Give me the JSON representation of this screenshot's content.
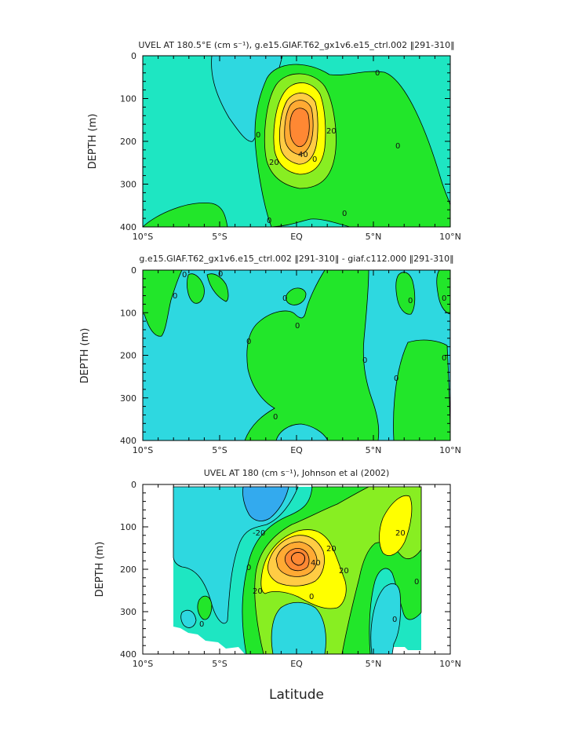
{
  "xlabel": "Latitude",
  "colors": {
    "neg": "#2ed8e0",
    "neg_deep": "#33aaee",
    "zero": "#1ee6c2",
    "pos10": "#22e62a",
    "pos20": "#88ee22",
    "pos30": "#ffff00",
    "pos40": "#ffcc44",
    "pos50": "#ffaa33",
    "pos60": "#ff8833",
    "outline": "#000000"
  },
  "chart_data": [
    {
      "type": "contour",
      "title": "UVEL AT 180.5°E (cm s⁻¹), g.e15.GIAF.T62_gx1v6.e15_ctrl.002 ‖291-310‖",
      "xlabel": "",
      "ylabel": "DEPTH (m)",
      "xlim": [
        -10,
        10
      ],
      "ylim": [
        400,
        0
      ],
      "xticks": [
        "10°S",
        "5°S",
        "EQ",
        "5°N",
        "10°N"
      ],
      "yticks": [
        "0",
        "100",
        "200",
        "300",
        "400"
      ],
      "contour_labels": [
        "0",
        "0",
        "0",
        "0",
        "0",
        "0",
        "20",
        "20",
        "40"
      ],
      "max": {
        "lat": 0.2,
        "depth": 160,
        "value": 60
      }
    },
    {
      "type": "contour",
      "title": "g.e15.GIAF.T62_gx1v6.e15_ctrl.002 ‖291-310‖ - giaf.c112.000 ‖291-310‖",
      "xlabel": "",
      "ylabel": "DEPTH (m)",
      "xlim": [
        -10,
        10
      ],
      "ylim": [
        400,
        0
      ],
      "xticks": [
        "10°S",
        "5°S",
        "EQ",
        "5°N",
        "10°N"
      ],
      "yticks": [
        "0",
        "100",
        "200",
        "300",
        "400"
      ],
      "contour_labels": [
        "0",
        "0",
        "0",
        "0",
        "0",
        "0",
        "0",
        "0",
        "0",
        "0",
        "0",
        "0"
      ]
    },
    {
      "type": "contour",
      "title": "UVEL AT 180 (cm s⁻¹), Johnson et al (2002)",
      "xlabel": "Latitude",
      "ylabel": "DEPTH (m)",
      "xlim": [
        -10,
        10
      ],
      "ylim": [
        400,
        0
      ],
      "xticks": [
        "10°S",
        "5°S",
        "EQ",
        "5°N",
        "10°N"
      ],
      "yticks": [
        "0",
        "100",
        "200",
        "300",
        "400"
      ],
      "contour_labels": [
        "-20",
        "0",
        "0",
        "0",
        "0",
        "0",
        "20",
        "20",
        "20",
        "20",
        "40"
      ],
      "max": {
        "lat": 0.3,
        "depth": 175,
        "value": 60
      }
    }
  ]
}
